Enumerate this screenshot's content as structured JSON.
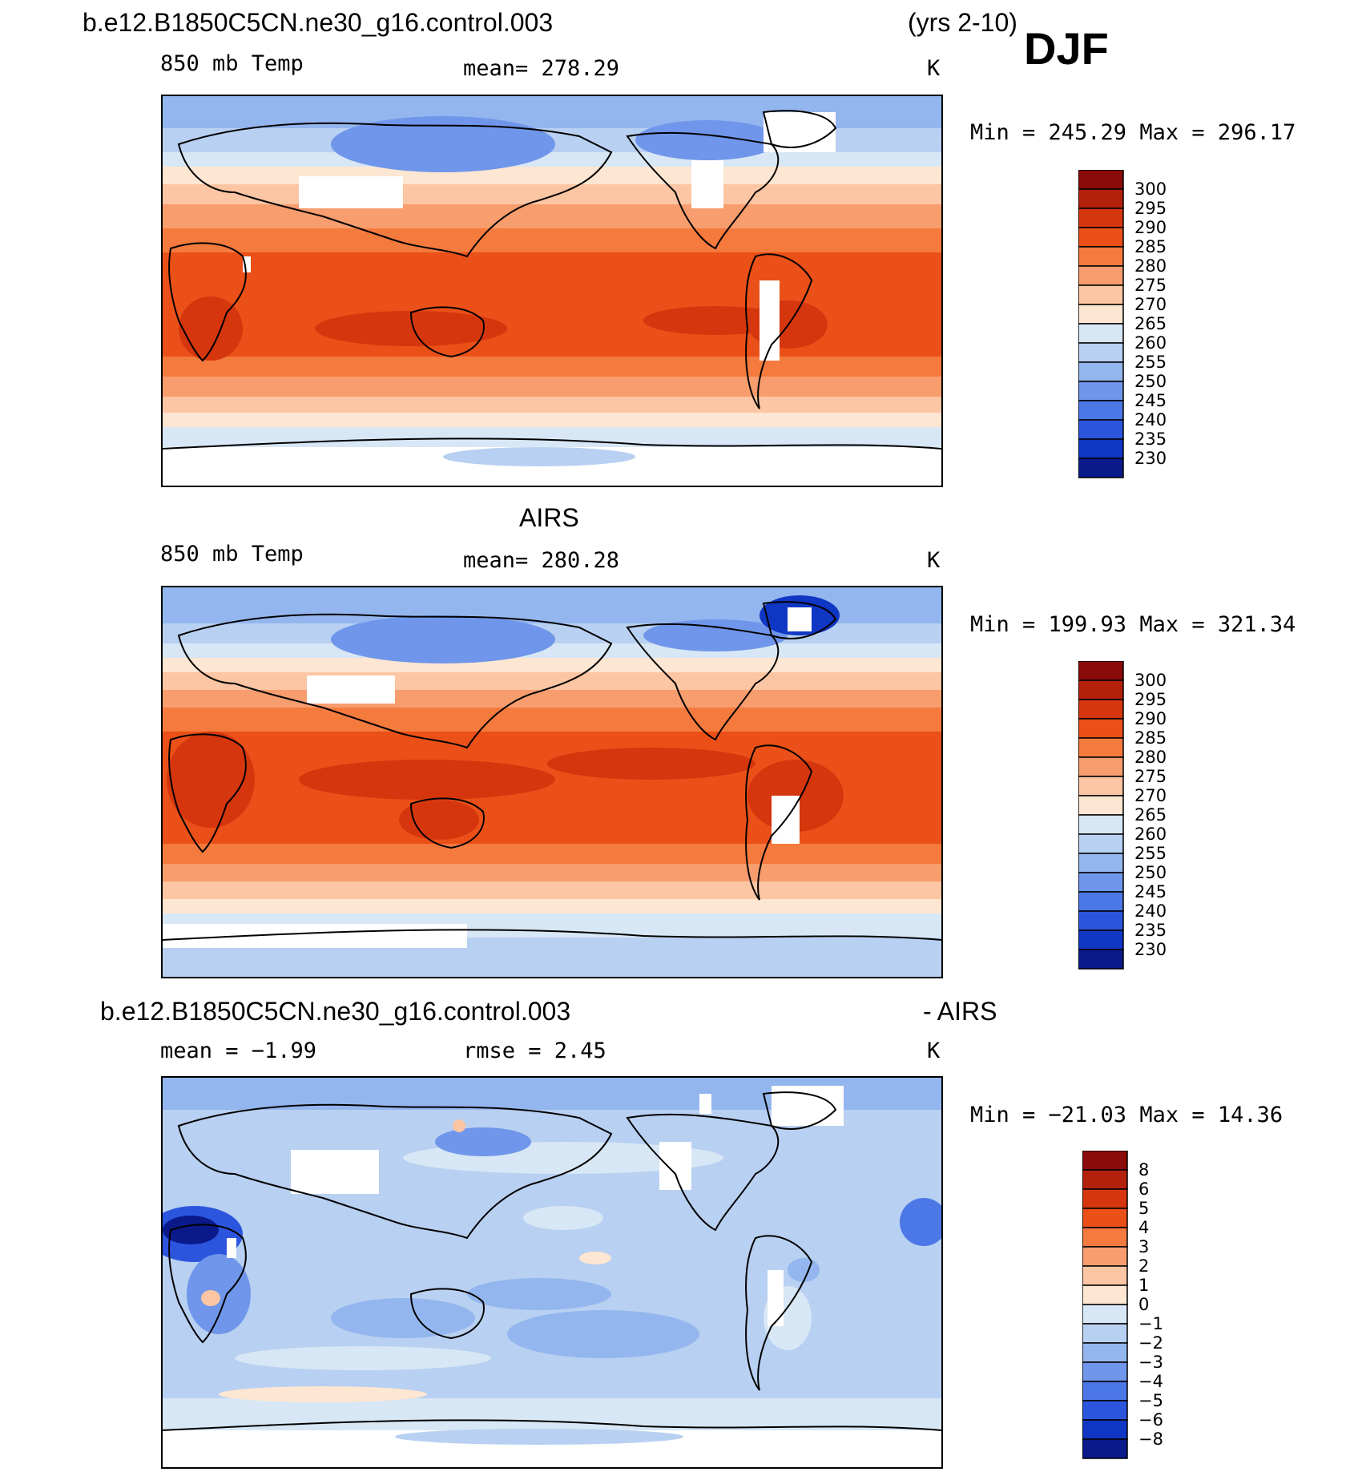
{
  "header": {
    "case_name": "b.e12.B1850C5CN.ne30_g16.control.003",
    "years": "(yrs 2-10)",
    "season": "DJF"
  },
  "panels": [
    {
      "id": "model",
      "title": "",
      "variable": "850 mb Temp",
      "stat_text": "mean=  278.29",
      "units": "K",
      "minmax_text": "Min  =  245.29  Max  =  296.17"
    },
    {
      "id": "obs",
      "title": "AIRS",
      "variable": "850 mb Temp",
      "stat_text": "mean=  280.28",
      "units": "K",
      "minmax_text": "Min  =  199.93  Max  =  321.34"
    },
    {
      "id": "diff",
      "title": "b.e12.B1850C5CN.ne30_g16.control.003",
      "title_right": "- AIRS",
      "variable": "mean  =   −1.99",
      "stat_text": "rmse  =    2.45",
      "units": "K",
      "minmax_text": "Min  =  −21.03  Max  =    14.36"
    }
  ],
  "colorbars": {
    "temp": {
      "labels": [
        "300",
        "295",
        "290",
        "285",
        "280",
        "275",
        "270",
        "265",
        "260",
        "255",
        "250",
        "245",
        "240",
        "235",
        "230"
      ],
      "colors": [
        "#8b0a0a",
        "#b3200c",
        "#d5360e",
        "#ea5018",
        "#f47a3e",
        "#f89d6d",
        "#fcc5a3",
        "#fde6d2",
        "#d8e7f5",
        "#b8d0f1",
        "#94b6ee",
        "#6f96ea",
        "#4c77e6",
        "#2c55de",
        "#1036c4",
        "#0a1a8a"
      ]
    },
    "diff": {
      "labels": [
        "8",
        "6",
        "5",
        "4",
        "3",
        "2",
        "1",
        "0",
        "−1",
        "−2",
        "−3",
        "−4",
        "−5",
        "−6",
        "−8"
      ],
      "colors": [
        "#8b0a0a",
        "#b3200c",
        "#d5360e",
        "#ea5018",
        "#f47a3e",
        "#f89d6d",
        "#fcc5a3",
        "#fde6d2",
        "#d8e7f5",
        "#b8d0f1",
        "#94b6ee",
        "#6f96ea",
        "#4c77e6",
        "#2c55de",
        "#1036c4",
        "#0a1a8a"
      ]
    }
  },
  "chart_data": [
    {
      "type": "heatmap",
      "title": "850 mb Temp",
      "subtitle": "b.e12.B1850C5CN.ne30_g16.control.003 (yrs 2-10) DJF",
      "units": "K",
      "mean": 278.29,
      "min": 245.29,
      "max": 296.17,
      "contour_levels": [
        230,
        235,
        240,
        245,
        250,
        255,
        260,
        265,
        270,
        275,
        280,
        285,
        290,
        295,
        300
      ],
      "projection": "cylindrical equidistant, Pacific-centered"
    },
    {
      "type": "heatmap",
      "title": "850 mb Temp",
      "subtitle": "AIRS",
      "units": "K",
      "mean": 280.28,
      "min": 199.93,
      "max": 321.34,
      "contour_levels": [
        230,
        235,
        240,
        245,
        250,
        255,
        260,
        265,
        270,
        275,
        280,
        285,
        290,
        295,
        300
      ],
      "projection": "cylindrical equidistant, Pacific-centered"
    },
    {
      "type": "heatmap",
      "title": "b.e12.B1850C5CN.ne30_g16.control.003 - AIRS",
      "units": "K",
      "mean": -1.99,
      "rmse": 2.45,
      "min": -21.03,
      "max": 14.36,
      "contour_levels": [
        -8,
        -6,
        -5,
        -4,
        -3,
        -2,
        -1,
        0,
        1,
        2,
        3,
        4,
        5,
        6,
        8
      ],
      "projection": "cylindrical equidistant, Pacific-centered"
    }
  ]
}
